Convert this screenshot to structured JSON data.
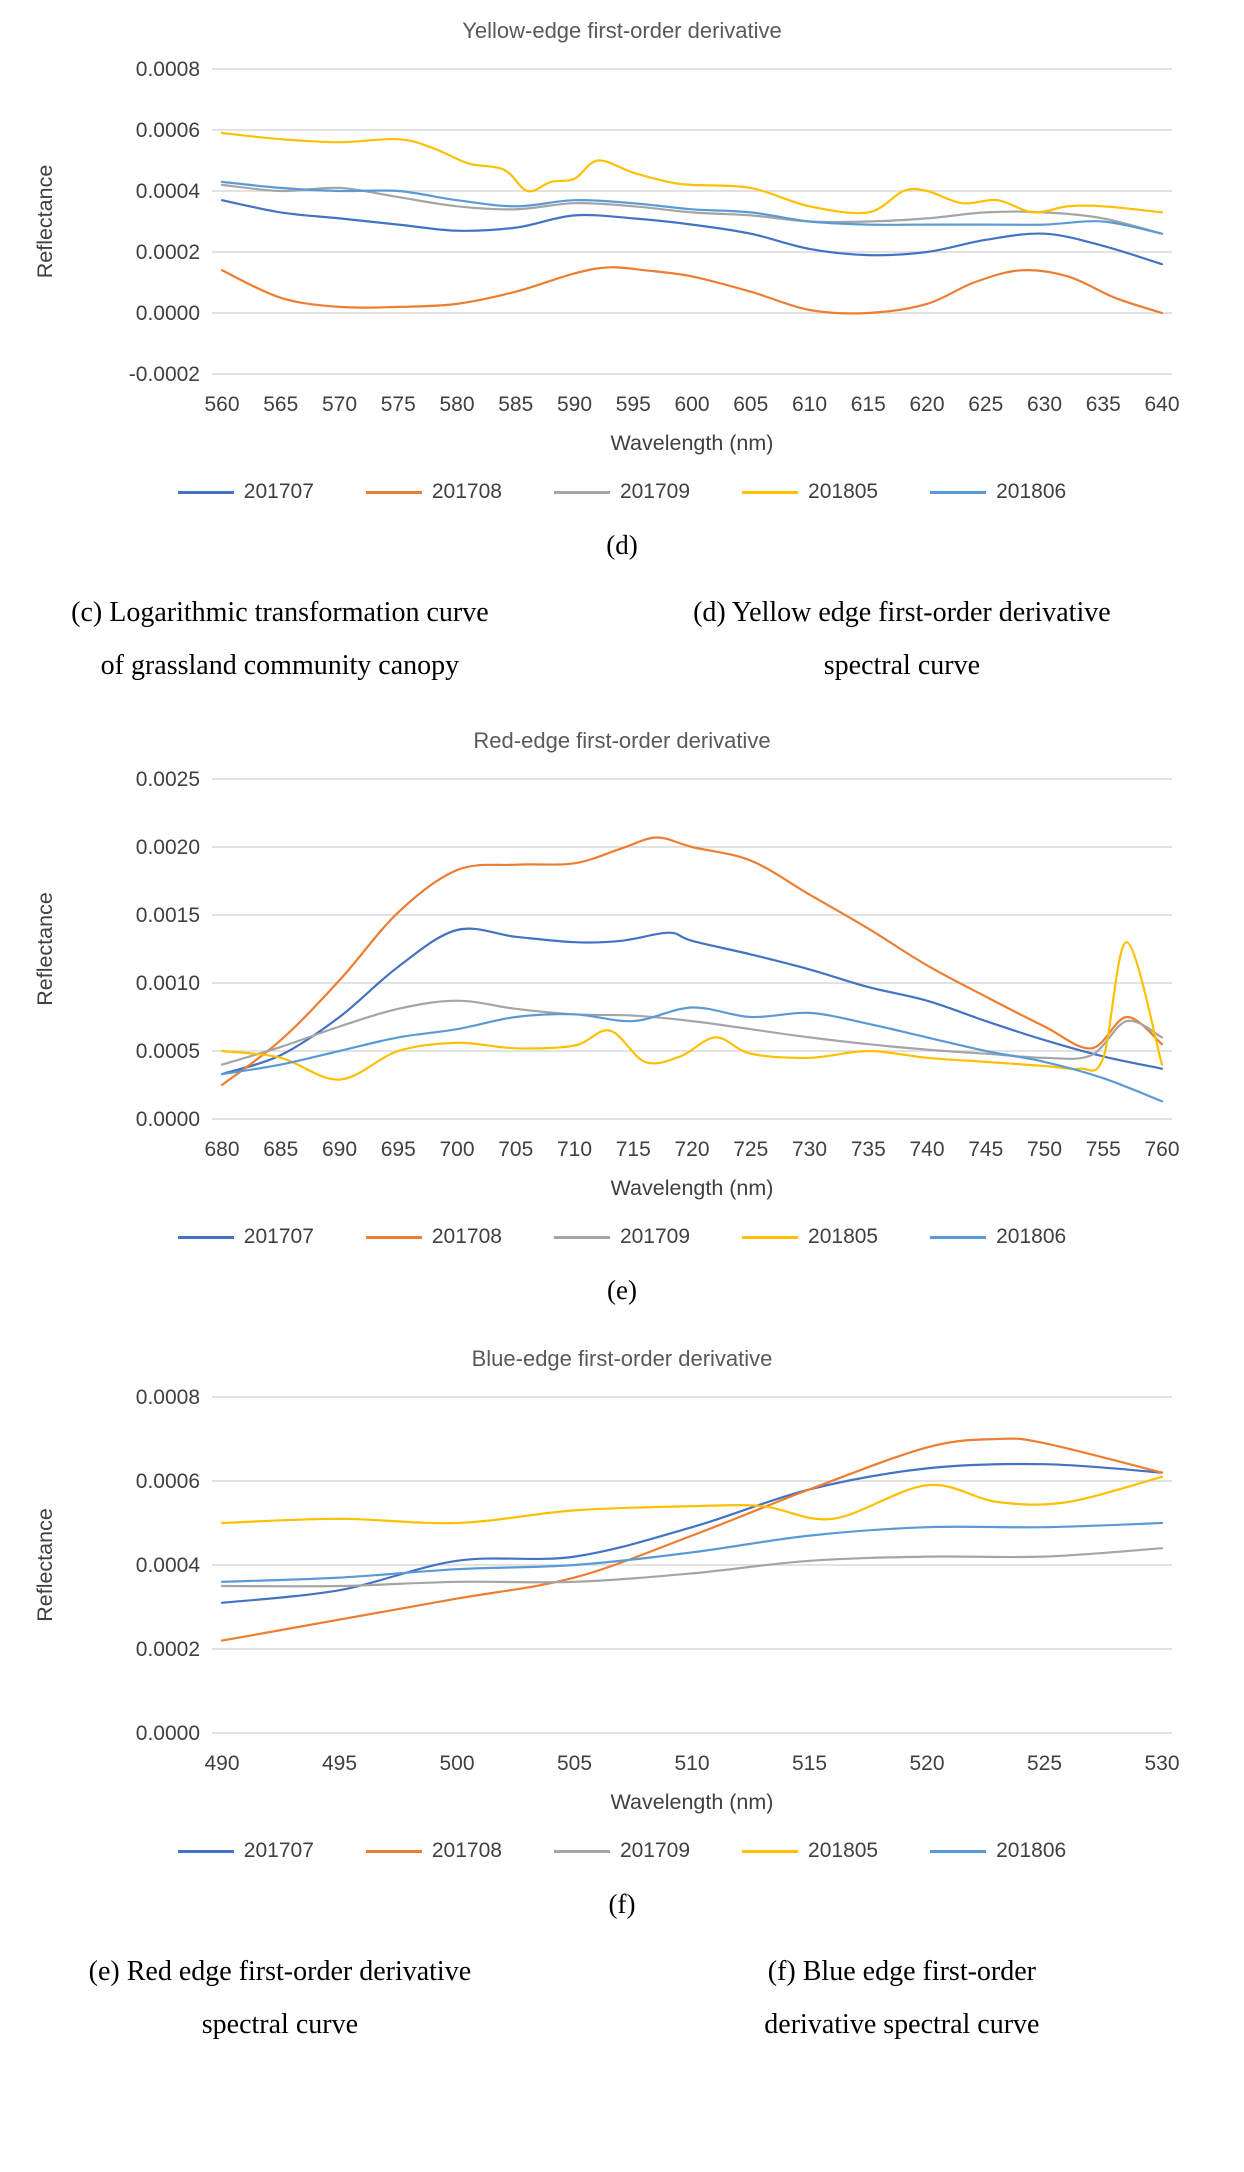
{
  "colors": {
    "gridline": "#D9D9D9",
    "axis_text": "#404040",
    "title_text": "#595959",
    "series_201707": "#4472C4",
    "series_201708": "#ED7D31",
    "series_201709": "#A5A5A5",
    "series_201805": "#FFC000",
    "series_201806": "#5B9BD5"
  },
  "captions": {
    "row1": {
      "left": [
        "(c) Logarithmic transformation curve",
        "of grassland community canopy"
      ],
      "right": [
        "(d) Yellow edge first-order derivative",
        "spectral curve"
      ]
    },
    "row2": {
      "left": [
        "(e) Red edge first-order derivative",
        "spectral curve"
      ],
      "right": [
        "(f) Blue edge first-order",
        "derivative spectral curve"
      ]
    }
  },
  "chart_data": [
    {
      "type": "line",
      "title": "Yellow-edge first-order derivative",
      "xlabel": "Wavelength (nm)",
      "ylabel": "Reflectance",
      "panel_label": "(d)",
      "xlim": [
        560,
        640
      ],
      "xtick_step": 5,
      "ylim": [
        -0.0002,
        0.0008
      ],
      "ytick_step": 0.0002,
      "ytick_decimals": 4,
      "grid": "horizontal",
      "legend_position": "bottom",
      "series": [
        {
          "name": "201707",
          "color": "#4472C4",
          "x": [
            560,
            565,
            570,
            575,
            580,
            585,
            590,
            595,
            600,
            605,
            610,
            615,
            620,
            625,
            630,
            635,
            640
          ],
          "y": [
            0.00037,
            0.00033,
            0.00031,
            0.00029,
            0.00027,
            0.00028,
            0.00032,
            0.00031,
            0.00029,
            0.00026,
            0.00021,
            0.00019,
            0.0002,
            0.00024,
            0.00026,
            0.00022,
            0.00016
          ]
        },
        {
          "name": "201708",
          "color": "#ED7D31",
          "x": [
            560,
            565,
            570,
            575,
            580,
            585,
            590,
            593,
            596,
            600,
            605,
            610,
            615,
            620,
            624,
            628,
            632,
            636,
            640
          ],
          "y": [
            0.00014,
            5e-05,
            2e-05,
            2e-05,
            3e-05,
            7e-05,
            0.00013,
            0.00015,
            0.00014,
            0.00012,
            7e-05,
            1e-05,
            0.0,
            3e-05,
            0.0001,
            0.00014,
            0.00012,
            5e-05,
            0.0
          ]
        },
        {
          "name": "201709",
          "color": "#A5A5A5",
          "x": [
            560,
            565,
            570,
            575,
            580,
            585,
            590,
            595,
            600,
            605,
            610,
            615,
            620,
            625,
            630,
            635,
            640
          ],
          "y": [
            0.00042,
            0.0004,
            0.00041,
            0.00038,
            0.00035,
            0.00034,
            0.00036,
            0.00035,
            0.00033,
            0.00032,
            0.0003,
            0.0003,
            0.00031,
            0.00033,
            0.00033,
            0.00031,
            0.00026
          ]
        },
        {
          "name": "201805",
          "color": "#FFC000",
          "x": [
            560,
            565,
            570,
            575,
            578,
            581,
            584,
            586,
            588,
            590,
            592,
            595,
            598,
            600,
            605,
            610,
            615,
            618,
            620,
            623,
            626,
            629,
            632,
            635,
            640
          ],
          "y": [
            0.00059,
            0.00057,
            0.00056,
            0.00057,
            0.00054,
            0.00049,
            0.00047,
            0.0004,
            0.00043,
            0.00044,
            0.0005,
            0.00046,
            0.00043,
            0.00042,
            0.00041,
            0.00035,
            0.00033,
            0.0004,
            0.0004,
            0.00036,
            0.00037,
            0.00033,
            0.00035,
            0.00035,
            0.00033
          ]
        },
        {
          "name": "201806",
          "color": "#5B9BD5",
          "x": [
            560,
            565,
            570,
            575,
            580,
            585,
            590,
            595,
            600,
            605,
            610,
            615,
            620,
            625,
            630,
            635,
            640
          ],
          "y": [
            0.00043,
            0.00041,
            0.0004,
            0.0004,
            0.00037,
            0.00035,
            0.00037,
            0.00036,
            0.00034,
            0.00033,
            0.0003,
            0.00029,
            0.00029,
            0.00029,
            0.00029,
            0.0003,
            0.00026
          ]
        }
      ]
    },
    {
      "type": "line",
      "title": "Red-edge first-order derivative",
      "xlabel": "Wavelength (nm)",
      "ylabel": "Reflectance",
      "panel_label": "(e)",
      "xlim": [
        680,
        760
      ],
      "xtick_step": 5,
      "ylim": [
        0,
        0.0025
      ],
      "ytick_step": 0.0005,
      "ytick_decimals": 4,
      "grid": "horizontal",
      "legend_position": "bottom",
      "series": [
        {
          "name": "201707",
          "color": "#4472C4",
          "x": [
            680,
            685,
            690,
            695,
            700,
            705,
            710,
            714,
            718,
            720,
            725,
            730,
            735,
            740,
            745,
            750,
            755,
            760
          ],
          "y": [
            0.00033,
            0.00047,
            0.00075,
            0.00112,
            0.00139,
            0.00134,
            0.0013,
            0.00131,
            0.00137,
            0.00131,
            0.00121,
            0.0011,
            0.00097,
            0.00087,
            0.00072,
            0.00058,
            0.00046,
            0.00037
          ]
        },
        {
          "name": "201708",
          "color": "#ED7D31",
          "x": [
            680,
            685,
            690,
            695,
            700,
            705,
            710,
            714,
            717,
            720,
            725,
            730,
            735,
            740,
            745,
            750,
            754,
            757,
            760
          ],
          "y": [
            0.00025,
            0.00058,
            0.00102,
            0.00152,
            0.00183,
            0.00187,
            0.00188,
            0.00199,
            0.00207,
            0.002,
            0.0019,
            0.00165,
            0.0014,
            0.00113,
            0.0009,
            0.00068,
            0.00052,
            0.00075,
            0.00055
          ]
        },
        {
          "name": "201709",
          "color": "#A5A5A5",
          "x": [
            680,
            685,
            690,
            695,
            700,
            705,
            710,
            715,
            720,
            725,
            730,
            735,
            740,
            745,
            750,
            754,
            757,
            760
          ],
          "y": [
            0.0004,
            0.00053,
            0.00068,
            0.00081,
            0.00087,
            0.00081,
            0.00077,
            0.00076,
            0.00072,
            0.00066,
            0.0006,
            0.00055,
            0.00051,
            0.00048,
            0.00045,
            0.00047,
            0.00072,
            0.0006
          ]
        },
        {
          "name": "201805",
          "color": "#FFC000",
          "x": [
            680,
            685,
            690,
            695,
            700,
            705,
            710,
            713,
            716,
            719,
            722,
            725,
            730,
            735,
            740,
            745,
            750,
            753,
            755,
            757,
            760
          ],
          "y": [
            0.0005,
            0.00045,
            0.00029,
            0.0005,
            0.00056,
            0.00052,
            0.00054,
            0.00065,
            0.00042,
            0.00046,
            0.0006,
            0.00048,
            0.00045,
            0.0005,
            0.00045,
            0.00042,
            0.00039,
            0.00037,
            0.00045,
            0.0013,
            0.0004
          ]
        },
        {
          "name": "201806",
          "color": "#5B9BD5",
          "x": [
            680,
            685,
            690,
            695,
            700,
            705,
            710,
            715,
            720,
            725,
            730,
            735,
            740,
            745,
            750,
            755,
            760
          ],
          "y": [
            0.00033,
            0.0004,
            0.0005,
            0.0006,
            0.00066,
            0.00075,
            0.00077,
            0.00072,
            0.00082,
            0.00075,
            0.00078,
            0.0007,
            0.0006,
            0.0005,
            0.00042,
            0.0003,
            0.00013
          ]
        }
      ]
    },
    {
      "type": "line",
      "title": "Blue-edge first-order derivative",
      "xlabel": "Wavelength (nm)",
      "ylabel": "Reflectance",
      "panel_label": "(f)",
      "xlim": [
        490,
        530
      ],
      "xtick_step": 5,
      "ylim": [
        0,
        0.0008
      ],
      "ytick_step": 0.0002,
      "ytick_decimals": 4,
      "grid": "horizontal",
      "legend_position": "bottom",
      "series": [
        {
          "name": "201707",
          "color": "#4472C4",
          "x": [
            490,
            495,
            500,
            505,
            510,
            515,
            520,
            525,
            530
          ],
          "y": [
            0.00031,
            0.00034,
            0.00041,
            0.00042,
            0.00049,
            0.00058,
            0.00063,
            0.00064,
            0.00062
          ]
        },
        {
          "name": "201708",
          "color": "#ED7D31",
          "x": [
            490,
            495,
            500,
            505,
            510,
            515,
            520,
            523,
            525,
            530
          ],
          "y": [
            0.00022,
            0.00027,
            0.00032,
            0.00037,
            0.00047,
            0.00058,
            0.00068,
            0.0007,
            0.00069,
            0.00062
          ]
        },
        {
          "name": "201709",
          "color": "#A5A5A5",
          "x": [
            490,
            495,
            500,
            505,
            510,
            515,
            520,
            525,
            530
          ],
          "y": [
            0.00035,
            0.00035,
            0.00036,
            0.00036,
            0.00038,
            0.00041,
            0.00042,
            0.00042,
            0.00044
          ]
        },
        {
          "name": "201805",
          "color": "#FFC000",
          "x": [
            490,
            495,
            500,
            505,
            510,
            513,
            516,
            520,
            523,
            526,
            530
          ],
          "y": [
            0.0005,
            0.00051,
            0.0005,
            0.00053,
            0.00054,
            0.00054,
            0.00051,
            0.00059,
            0.00055,
            0.00055,
            0.00061
          ]
        },
        {
          "name": "201806",
          "color": "#5B9BD5",
          "x": [
            490,
            495,
            500,
            505,
            510,
            515,
            520,
            525,
            530
          ],
          "y": [
            0.00036,
            0.00037,
            0.00039,
            0.0004,
            0.00043,
            0.00047,
            0.00049,
            0.00049,
            0.0005
          ]
        }
      ]
    }
  ]
}
